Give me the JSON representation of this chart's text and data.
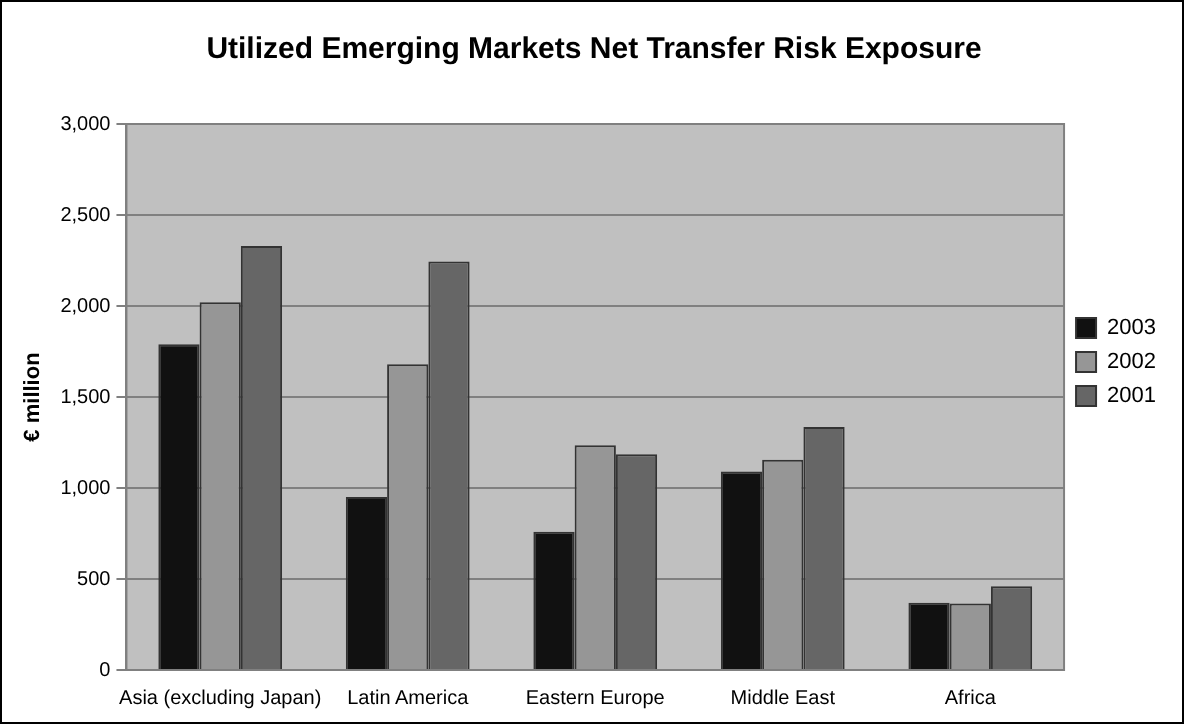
{
  "chart_data": {
    "type": "bar",
    "title": "Utilized Emerging Markets Net Transfer Risk Exposure",
    "ylabel": "€ million",
    "categories": [
      "Asia (excluding Japan)",
      "Latin America",
      "Eastern Europe",
      "Middle East",
      "Africa"
    ],
    "series": [
      {
        "name": "2003",
        "color": "#111111",
        "values": [
          1790,
          950,
          760,
          1090,
          370
        ]
      },
      {
        "name": "2002",
        "color": "#969696",
        "values": [
          2020,
          1680,
          1235,
          1155,
          365
        ]
      },
      {
        "name": "2001",
        "color": "#666666",
        "values": [
          2330,
          2245,
          1185,
          1335,
          460
        ]
      }
    ],
    "ylim": [
      0,
      3000
    ],
    "yticks": [
      {
        "value": 0,
        "label": "0"
      },
      {
        "value": 500,
        "label": "500"
      },
      {
        "value": 1000,
        "label": "1,000"
      },
      {
        "value": 1500,
        "label": "1,500"
      },
      {
        "value": 2000,
        "label": "2,000"
      },
      {
        "value": 2500,
        "label": "2,500"
      },
      {
        "value": 3000,
        "label": "3,000"
      }
    ],
    "grid": "y",
    "legend": "right"
  }
}
